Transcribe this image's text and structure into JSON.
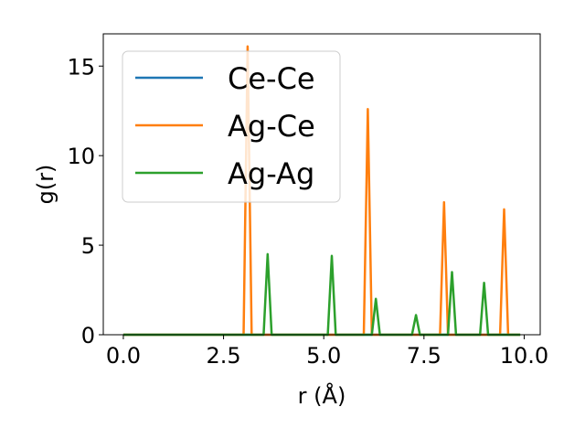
{
  "chart_data": {
    "type": "line",
    "title": "",
    "xlabel": "r (Å)",
    "ylabel": "g(r)",
    "xlim": [
      -0.5,
      10.4
    ],
    "ylim": [
      0,
      16.8
    ],
    "xticks": [
      0.0,
      2.5,
      5.0,
      7.5,
      10.0
    ],
    "xtick_labels": [
      "0.0",
      "2.5",
      "5.0",
      "7.5",
      "10.0"
    ],
    "yticks": [
      0,
      5,
      10,
      15
    ],
    "ytick_labels": [
      "0",
      "5",
      "10",
      "15"
    ],
    "grid": false,
    "legend_position": "upper-left",
    "series": [
      {
        "name": "Ce-Ce",
        "color": "#1f77b4",
        "x": [
          0.0,
          9.9
        ],
        "y": [
          0,
          0
        ]
      },
      {
        "name": "Ag-Ce",
        "color": "#ff7f0e",
        "x": [
          0.0,
          3.0,
          3.1,
          3.2,
          6.0,
          6.1,
          6.2,
          7.9,
          8.0,
          8.1,
          9.4,
          9.5,
          9.6,
          9.9
        ],
        "y": [
          0,
          0,
          16.1,
          0,
          0,
          12.6,
          0,
          0,
          7.4,
          0,
          0,
          7.0,
          0,
          0
        ]
      },
      {
        "name": "Ag-Ag",
        "color": "#2ca02c",
        "x": [
          0.0,
          3.5,
          3.6,
          3.7,
          5.1,
          5.2,
          5.3,
          6.2,
          6.3,
          6.4,
          7.2,
          7.3,
          7.4,
          8.1,
          8.2,
          8.3,
          8.9,
          9.0,
          9.1,
          9.9
        ],
        "y": [
          0,
          0,
          4.5,
          0,
          0,
          4.4,
          0,
          0,
          2.0,
          0,
          0,
          1.1,
          0,
          0,
          3.5,
          0,
          0,
          2.9,
          0,
          0
        ]
      }
    ]
  }
}
